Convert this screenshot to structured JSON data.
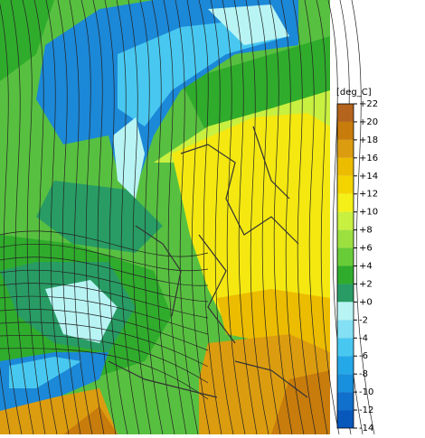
{
  "legend": {
    "title": "[deg_C]",
    "ticks": [
      {
        "value": 22,
        "label": "+22"
      },
      {
        "value": 20,
        "label": "+20"
      },
      {
        "value": 18,
        "label": "+18"
      },
      {
        "value": 16,
        "label": "+16"
      },
      {
        "value": 14,
        "label": "+14"
      },
      {
        "value": 12,
        "label": "+12"
      },
      {
        "value": 10,
        "label": "+10"
      },
      {
        "value": 8,
        "label": "+8"
      },
      {
        "value": 6,
        "label": "+6"
      },
      {
        "value": 4,
        "label": "+4"
      },
      {
        "value": 2,
        "label": "+2"
      },
      {
        "value": 0,
        "label": "+0"
      },
      -2,
      -4,
      -6,
      -8,
      -10,
      -12,
      -14
    ],
    "colors": [
      "#b4641c",
      "#c87c0c",
      "#dc9c10",
      "#ecbc00",
      "#f4d400",
      "#f4f018",
      "#c8f040",
      "#9ce040",
      "#68cc38",
      "#30ac2c",
      "#289c64",
      "#b8f4f4",
      "#84e0f4",
      "#48c8f0",
      "#24a8e8",
      "#1890dc",
      "#1070cc",
      "#0858bc"
    ]
  }
}
